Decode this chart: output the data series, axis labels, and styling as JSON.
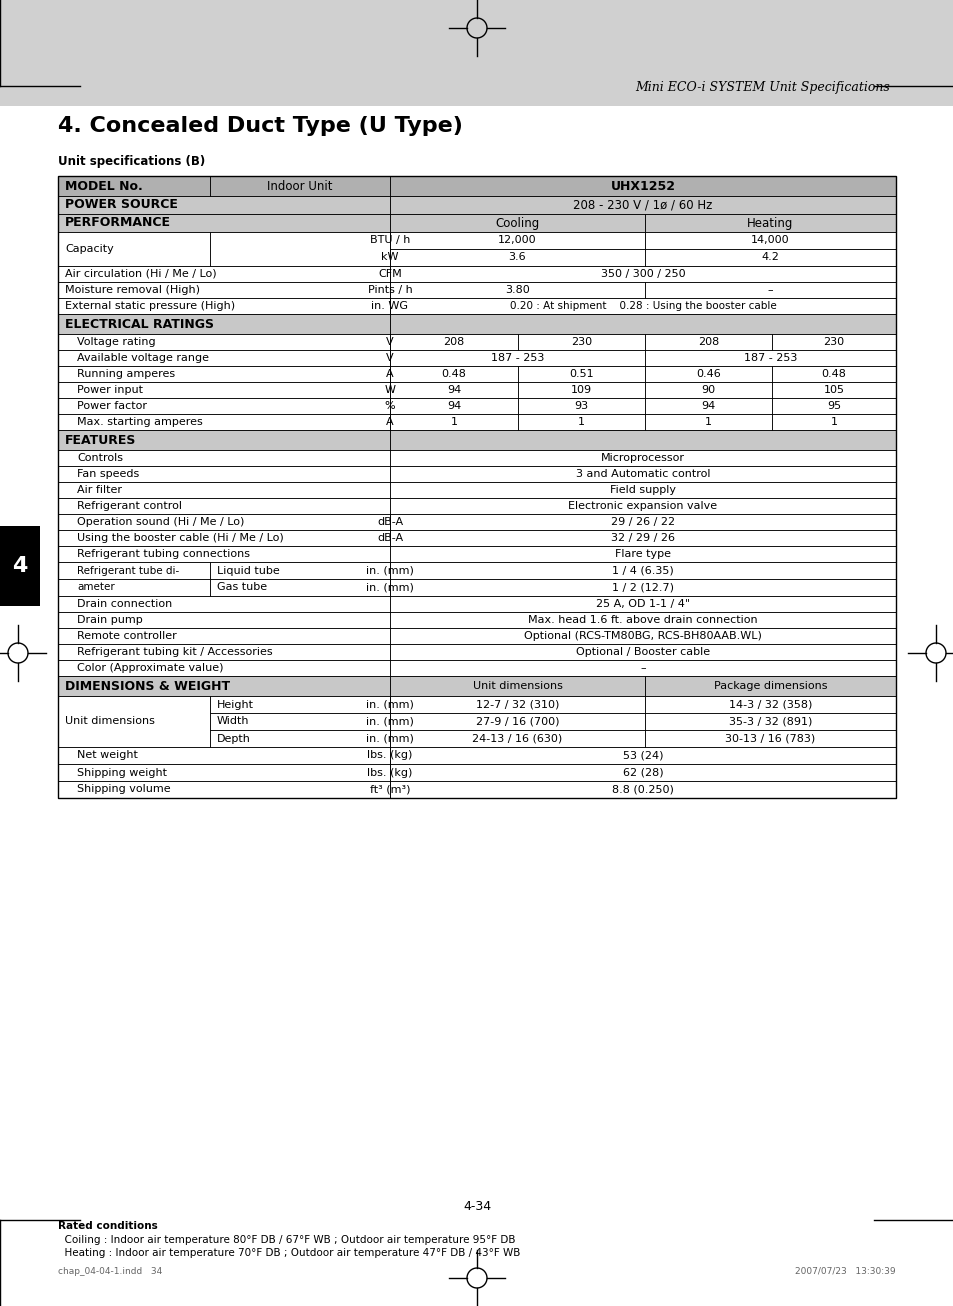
{
  "page_title": "Mini ECO-i SYSTEM Unit Specifications",
  "section_title": "4. Concealed Duct Type (U Type)",
  "table_title": "Unit specifications (B)",
  "model": "UHX1252",
  "footer_text": "4-34",
  "footer_note1": "Rated conditions",
  "footer_note2": "  Coiling : Indoor air temperature 80°F DB / 67°F WB ; Outdoor air temperature 95°F DB",
  "footer_note3": "  Heating : Indoor air temperature 70°F DB ; Outdoor air temperature 47°F DB / 43°F WB",
  "tab_number": "4",
  "chap_ref": "chap_04-04-1.indd   34",
  "date_ref": "2007/07/23   13:30:39",
  "hdr_bg": "#b0b0b0",
  "sec_bg": "#c8c8c8",
  "white": "#ffffff",
  "page_header_bg": "#d0d0d0"
}
